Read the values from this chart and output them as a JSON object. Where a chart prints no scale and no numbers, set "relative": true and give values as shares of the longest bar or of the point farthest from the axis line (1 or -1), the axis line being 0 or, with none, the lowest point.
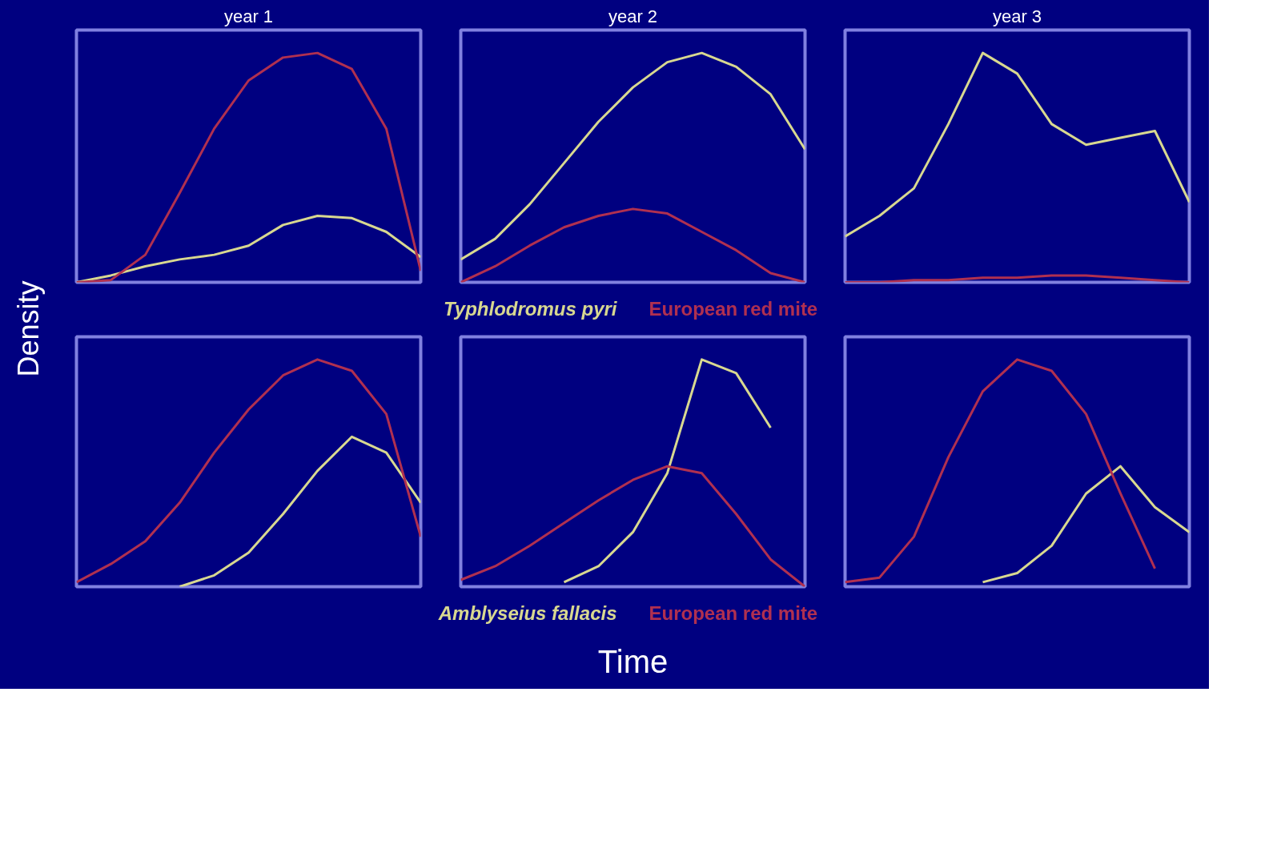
{
  "chart_data": [
    {
      "type": "line",
      "title": "year 1",
      "ylabel": "Density",
      "relative": true,
      "categories": [
        null,
        null,
        null,
        null,
        null,
        null,
        null,
        null,
        null,
        null,
        null
      ],
      "series": [
        {
          "color": "#d8d890",
          "values": [
            0,
            0.03,
            0.07,
            0.1,
            0.12,
            0.16,
            0.25,
            0.29,
            0.28,
            0.22,
            0.11
          ]
        },
        {
          "color": "#b03050",
          "values": [
            0,
            0.01,
            0.12,
            0.39,
            0.67,
            0.88,
            0.98,
            1,
            0.93,
            0.67,
            0.05
          ]
        }
      ]
    },
    {
      "type": "line",
      "title": "year 2",
      "relative": true,
      "categories": [
        null,
        null,
        null,
        null,
        null,
        null,
        null,
        null,
        null,
        null,
        null
      ],
      "series": [
        {
          "name": "Typhlodromus pyri",
          "color": "#d8d890",
          "values": [
            0.1,
            0.19,
            0.34,
            0.52,
            0.7,
            0.85,
            0.96,
            1,
            0.94,
            0.82,
            0.58
          ]
        },
        {
          "name": "European red mite",
          "color": "#b03050",
          "values": [
            0,
            0.07,
            0.16,
            0.24,
            0.29,
            0.32,
            0.3,
            0.22,
            0.14,
            0.04,
            0
          ]
        }
      ]
    },
    {
      "type": "line",
      "title": "year 3",
      "relative": true,
      "categories": [
        null,
        null,
        null,
        null,
        null,
        null,
        null,
        null,
        null,
        null,
        null
      ],
      "series": [
        {
          "color": "#d8d890",
          "values": [
            0.2,
            0.29,
            0.41,
            0.69,
            1,
            0.91,
            0.69,
            0.6,
            0.63,
            0.66,
            0.35
          ]
        },
        {
          "color": "#b03050",
          "values": [
            0,
            0,
            0.01,
            0.01,
            0.02,
            0.02,
            0.03,
            0.03,
            0.02,
            0.01,
            0
          ]
        }
      ]
    },
    {
      "type": "line",
      "relative": true,
      "categories": [
        null,
        null,
        null,
        null,
        null,
        null,
        null,
        null,
        null,
        null,
        null
      ],
      "series": [
        {
          "color": "#d8d890",
          "values": [
            null,
            null,
            null,
            0,
            0.05,
            0.15,
            0.32,
            0.51,
            0.66,
            0.59,
            0.37
          ]
        },
        {
          "color": "#b03050",
          "values": [
            0.02,
            0.1,
            0.2,
            0.37,
            0.59,
            0.78,
            0.93,
            1,
            0.95,
            0.76,
            0.22
          ]
        }
      ]
    },
    {
      "type": "line",
      "xlabel": "Time",
      "relative": true,
      "categories": [
        null,
        null,
        null,
        null,
        null,
        null,
        null,
        null,
        null,
        null,
        null
      ],
      "series": [
        {
          "name": "Amblyseius fallacis",
          "color": "#d8d890",
          "values": [
            null,
            null,
            null,
            0.02,
            0.09,
            0.24,
            0.5,
            1,
            0.94,
            0.7,
            null
          ]
        },
        {
          "name": "European red mite",
          "color": "#b03050",
          "values": [
            0.03,
            0.09,
            0.18,
            0.28,
            0.38,
            0.47,
            0.53,
            0.5,
            0.32,
            0.12,
            0
          ]
        }
      ]
    },
    {
      "type": "line",
      "relative": true,
      "categories": [
        null,
        null,
        null,
        null,
        null,
        null,
        null,
        null,
        null,
        null,
        null
      ],
      "series": [
        {
          "color": "#d8d890",
          "values": [
            null,
            null,
            null,
            null,
            0.02,
            0.06,
            0.18,
            0.41,
            0.53,
            0.35,
            0.24
          ]
        },
        {
          "color": "#b03050",
          "values": [
            0.02,
            0.04,
            0.22,
            0.57,
            0.86,
            1,
            0.95,
            0.76,
            0.41,
            0.08,
            null
          ]
        }
      ]
    }
  ]
}
